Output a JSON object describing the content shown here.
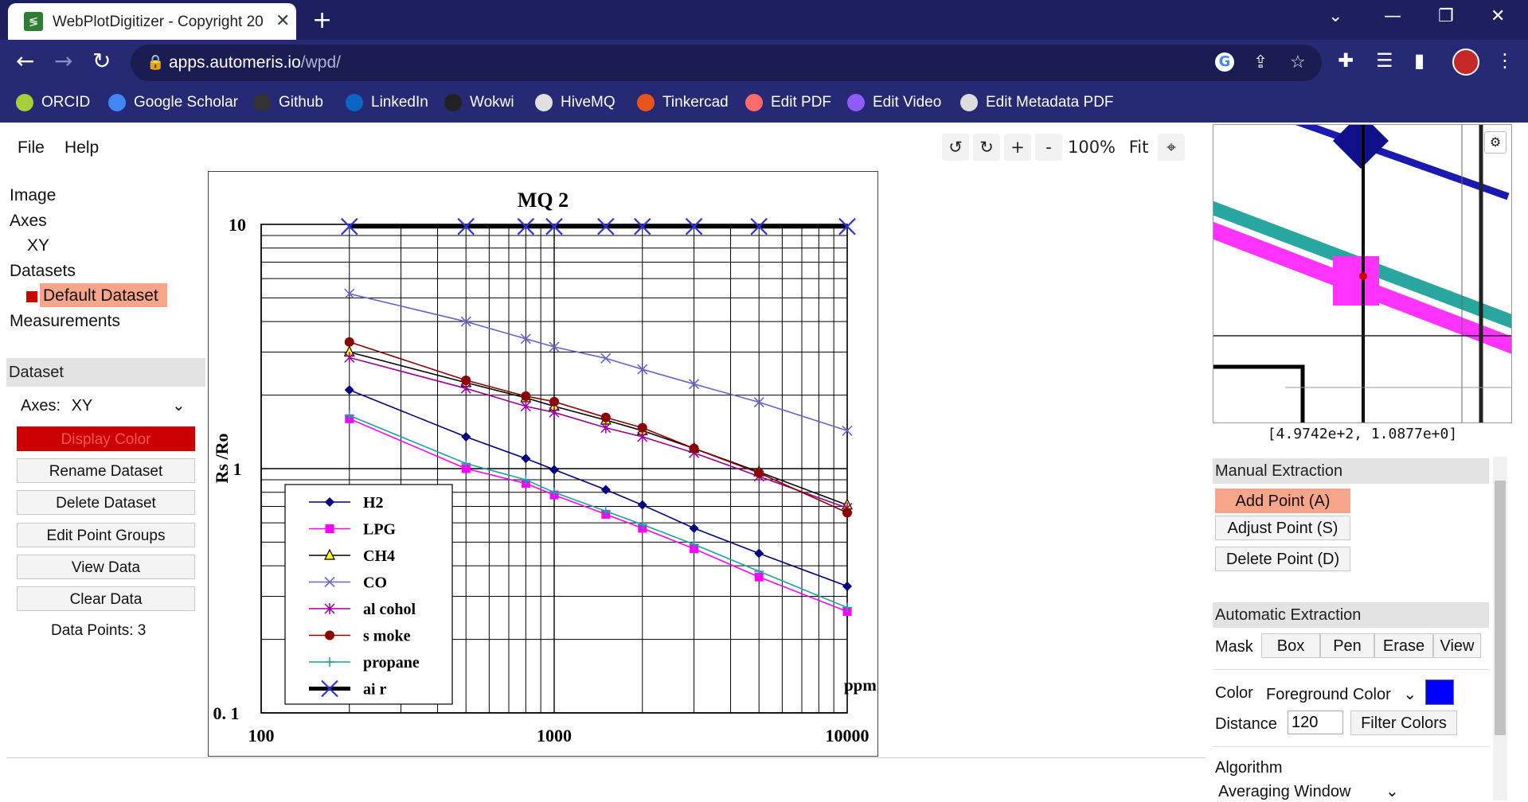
{
  "browser": {
    "tab_title": "WebPlotDigitizer - Copyright 20",
    "tab_icon_glyph": "≶",
    "tab_close": "✕",
    "new_tab": "+",
    "url_host": "apps.automeris.io",
    "url_path": "/wpd/",
    "bookmarks": [
      {
        "label": "ORCID",
        "icon": "orcid-icon",
        "color": "#a6ce39"
      },
      {
        "label": "Google Scholar",
        "icon": "google-scholar-icon",
        "color": "#4285f4"
      },
      {
        "label": "Github",
        "icon": "github-icon",
        "color": "#333333"
      },
      {
        "label": "LinkedIn",
        "icon": "linkedin-icon",
        "color": "#0a66c2"
      },
      {
        "label": "Wokwi",
        "icon": "wokwi-icon",
        "color": "#222222"
      },
      {
        "label": "HiveMQ",
        "icon": "hivemq-icon",
        "color": "#e0e0e0"
      },
      {
        "label": "Tinkercad",
        "icon": "tinkercad-icon",
        "color": "#e8541c"
      },
      {
        "label": "Edit PDF",
        "icon": "edit-pdf-icon",
        "color": "#ff6b6b"
      },
      {
        "label": "Edit Video",
        "icon": "edit-video-icon",
        "color": "#8e5cf7"
      },
      {
        "label": "Edit Metadata PDF",
        "icon": "edit-metadata-pdf-icon",
        "color": "#dddddd"
      }
    ]
  },
  "app": {
    "menu": {
      "file": "File",
      "help": "Help"
    },
    "zoom_controls": {
      "rotate_ccw": "↺",
      "rotate_cw": "↻",
      "zoom_in": "+",
      "zoom_out": "-",
      "zoom_level": "100%",
      "fit": "Fit",
      "crosshair": "⌖"
    },
    "tree": {
      "image": "Image",
      "axes": "Axes",
      "xy": "XY",
      "datasets": "Datasets",
      "default_dataset": "Default Dataset",
      "measurements": "Measurements"
    },
    "dataset_panel": {
      "header": "Dataset",
      "axes_label": "Axes:",
      "axes_value": "XY",
      "display_color": "Display Color",
      "display_color_value": "#cc0000",
      "rename": "Rename Dataset",
      "delete": "Delete Dataset",
      "edit_groups": "Edit Point Groups",
      "view_data": "View Data",
      "clear_data": "Clear Data",
      "data_points_label": "Data Points: 3"
    },
    "right_panel": {
      "cursor_coords": "[4.9742e+2, 1.0877e+0]",
      "manual_header": "Manual Extraction",
      "add_point": "Add Point (A)",
      "adjust_point": "Adjust Point (S)",
      "delete_point": "Delete Point (D)",
      "auto_header": "Automatic Extraction",
      "mask_label": "Mask",
      "mask_buttons": [
        "Box",
        "Pen",
        "Erase",
        "View"
      ],
      "color_label": "Color",
      "color_value": "Foreground Color",
      "color_swatch": "#0000ff",
      "distance_label": "Distance",
      "distance_value": "120",
      "filter_colors": "Filter Colors",
      "algorithm_label": "Algorithm",
      "algorithm_value": "Averaging Window"
    }
  },
  "chart_data": {
    "type": "line",
    "title": "MQ 2",
    "xlabel": "ppm",
    "ylabel": "Rs /Ro",
    "x_scale": "log",
    "y_scale": "log",
    "xlim": [
      100,
      10000
    ],
    "ylim": [
      0.1,
      10
    ],
    "x_ticks": [
      "100",
      "1000",
      "10000"
    ],
    "y_ticks": [
      "10",
      "1",
      "0. 1"
    ],
    "grid": true,
    "legend_position": "bottom-left",
    "series": [
      {
        "name": "H2",
        "legend": "H2",
        "color": "#000080",
        "marker": "diamond",
        "x": [
          200,
          500,
          800,
          1000,
          1500,
          2000,
          3000,
          5000,
          10000
        ],
        "y": [
          2.1,
          1.35,
          1.1,
          0.99,
          0.82,
          0.71,
          0.57,
          0.45,
          0.33
        ]
      },
      {
        "name": "LPG",
        "legend": "LPG",
        "color": "#ff00ff",
        "marker": "square",
        "x": [
          200,
          500,
          800,
          1000,
          1500,
          2000,
          3000,
          5000,
          10000
        ],
        "y": [
          1.6,
          1.0,
          0.87,
          0.78,
          0.65,
          0.57,
          0.47,
          0.36,
          0.26
        ]
      },
      {
        "name": "CH4",
        "legend": "CH4",
        "color": "#000000",
        "marker": "triangle",
        "x": [
          200,
          500,
          800,
          1000,
          1500,
          2000,
          3000,
          5000,
          10000
        ],
        "y": [
          3.0,
          2.25,
          1.95,
          1.8,
          1.58,
          1.43,
          1.21,
          0.97,
          0.71
        ]
      },
      {
        "name": "CO",
        "legend": "CO",
        "color": "#6666cc",
        "marker": "x",
        "x": [
          200,
          500,
          800,
          1000,
          1500,
          2000,
          3000,
          5000,
          10000
        ],
        "y": [
          5.2,
          4.0,
          3.4,
          3.15,
          2.83,
          2.55,
          2.22,
          1.87,
          1.43
        ]
      },
      {
        "name": "alcohol",
        "legend": "al cohol",
        "color": "#990099",
        "marker": "star",
        "x": [
          200,
          500,
          800,
          1000,
          1500,
          2000,
          3000,
          5000,
          10000
        ],
        "y": [
          2.85,
          2.13,
          1.8,
          1.7,
          1.47,
          1.35,
          1.16,
          0.93,
          0.69
        ]
      },
      {
        "name": "smoke",
        "legend": "s moke",
        "color": "#8b0000",
        "marker": "circle",
        "x": [
          200,
          500,
          800,
          1000,
          1500,
          2000,
          3000,
          5000,
          10000
        ],
        "y": [
          3.3,
          2.3,
          1.98,
          1.88,
          1.62,
          1.47,
          1.21,
          0.96,
          0.66
        ]
      },
      {
        "name": "propane",
        "legend": "propane",
        "color": "#20a0a0",
        "marker": "plus",
        "x": [
          200,
          500,
          800,
          1000,
          1500,
          2000,
          3000,
          5000,
          10000
        ],
        "y": [
          1.65,
          1.05,
          0.9,
          0.8,
          0.67,
          0.59,
          0.49,
          0.38,
          0.27
        ]
      },
      {
        "name": "air",
        "legend": "ai r",
        "color": "#000000",
        "marker": "x-blue",
        "x": [
          200,
          500,
          800,
          1000,
          1500,
          2000,
          3000,
          5000,
          10000
        ],
        "y": [
          9.8,
          9.8,
          9.8,
          9.8,
          9.8,
          9.8,
          9.8,
          9.8,
          9.8
        ]
      }
    ]
  }
}
